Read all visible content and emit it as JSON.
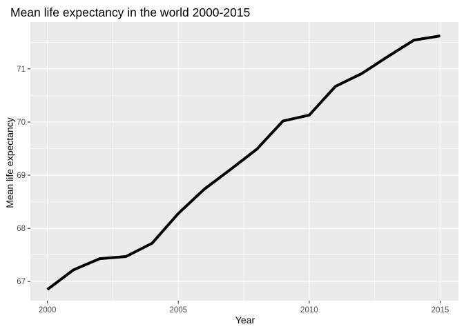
{
  "chart_data": {
    "type": "line",
    "title": "Mean life expectancy in the world 2000-2015",
    "xlabel": "Year",
    "ylabel": "Mean life expectancy",
    "x_ticks": [
      2000,
      2005,
      2010,
      2015
    ],
    "y_ticks": [
      67,
      68,
      69,
      70,
      71
    ],
    "x_tick_labels": [
      "2000",
      "2005",
      "2010",
      "2015"
    ],
    "y_tick_labels": [
      "67",
      "68",
      "69",
      "70",
      "71"
    ],
    "xlim": [
      1999.35,
      2015.7
    ],
    "ylim": [
      66.64,
      71.88
    ],
    "grid": true,
    "legend": "none",
    "colors": {
      "panel": "#ebebeb",
      "grid_major": "#ffffff",
      "line": "#000000",
      "tick": "#333333"
    },
    "series": [
      {
        "x": [
          2000,
          2001,
          2002,
          2003,
          2004,
          2005,
          2006,
          2007,
          2008,
          2009,
          2010,
          2011,
          2012,
          2013,
          2014,
          2015
        ],
        "values": [
          66.85,
          67.22,
          67.43,
          67.47,
          67.72,
          68.28,
          68.74,
          69.11,
          69.49,
          70.02,
          70.13,
          70.67,
          70.91,
          71.23,
          71.54,
          71.62
        ]
      }
    ]
  }
}
